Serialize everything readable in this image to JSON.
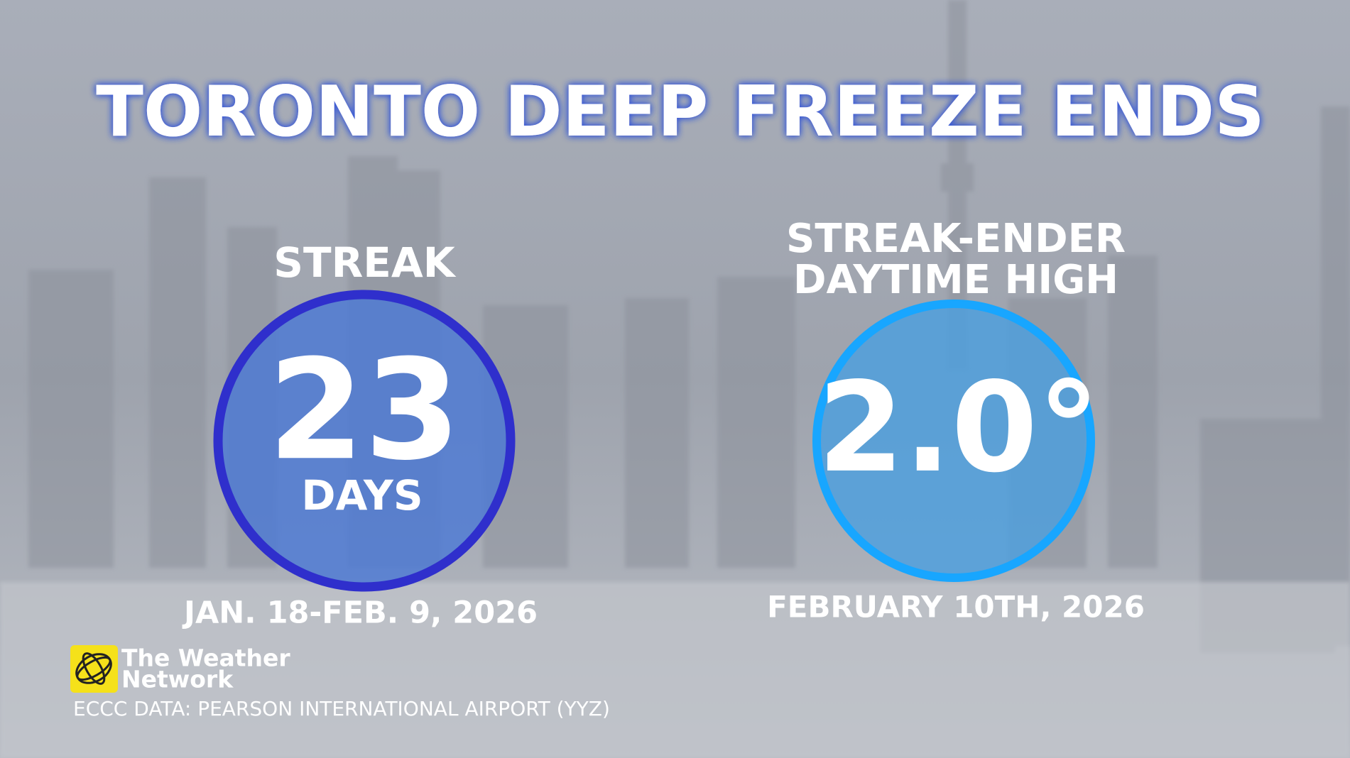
{
  "title": "TORONTO DEEP FREEZE ENDS",
  "left": {
    "label": "STREAK",
    "value": "23",
    "unit": "DAYS",
    "date": "JAN. 18-FEB. 9, 2026"
  },
  "right": {
    "label": [
      "STREAK-ENDER",
      "DAYTIME HIGH"
    ],
    "value": "2.0°",
    "date": "FEBRUARY 10TH, 2026"
  },
  "logo": [
    "The Weather",
    "Network"
  ],
  "source": "ECCC DATA: PEARSON INTERNATIONAL AIRPORT (YYZ)"
}
